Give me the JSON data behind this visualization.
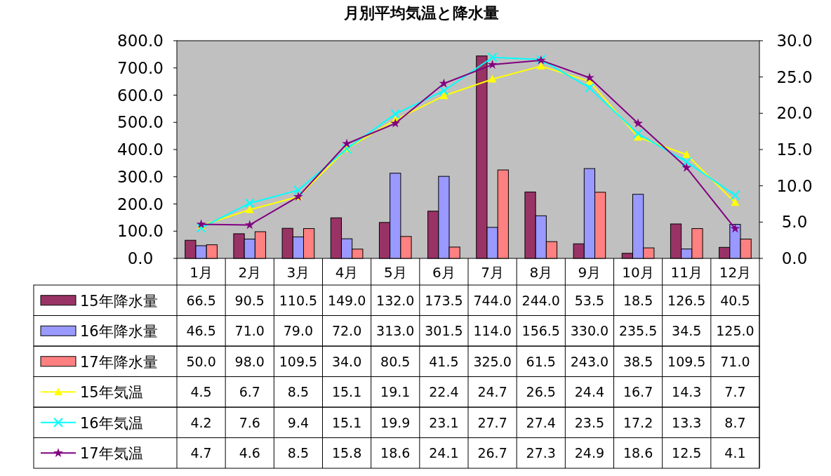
{
  "chart_data": {
    "type": "bar",
    "title": "月別平均気温と降水量",
    "categories": [
      "1月",
      "2月",
      "3月",
      "4月",
      "5月",
      "6月",
      "7月",
      "8月",
      "9月",
      "10月",
      "11月",
      "12月"
    ],
    "ylim": [
      0,
      800
    ],
    "yticks": [
      {
        "value": 0,
        "label": "0.0"
      },
      {
        "value": 100,
        "label": "100.0"
      },
      {
        "value": 200,
        "label": "200.0"
      },
      {
        "value": 300,
        "label": "300.0"
      },
      {
        "value": 400,
        "label": "400.0"
      },
      {
        "value": 500,
        "label": "500.0"
      },
      {
        "value": 600,
        "label": "600.0"
      },
      {
        "value": 700,
        "label": "700.0"
      },
      {
        "value": 800,
        "label": "800.0"
      }
    ],
    "y2lim": [
      0,
      30
    ],
    "y2ticks": [
      {
        "value": 0,
        "label": "0.0"
      },
      {
        "value": 5,
        "label": "5.0"
      },
      {
        "value": 10,
        "label": "10.0"
      },
      {
        "value": 15,
        "label": "15.0"
      },
      {
        "value": 20,
        "label": "20.0"
      },
      {
        "value": 25,
        "label": "25.0"
      },
      {
        "value": 30,
        "label": "30.0"
      }
    ],
    "grid": false,
    "legend": "bottom left",
    "series": [
      {
        "name": "15年降水量",
        "color": "#993366",
        "values": [
          66.5,
          90.5,
          110.5,
          149.0,
          132.0,
          173.5,
          744.0,
          244.0,
          53.5,
          18.5,
          126.5,
          40.5
        ],
        "value_labels": [
          "66.5",
          "90.5",
          "110.5",
          "149.0",
          "132.0",
          "173.5",
          "744.0",
          "244.0",
          "53.5",
          "18.5",
          "126.5",
          "40.5"
        ]
      },
      {
        "name": "16年降水量",
        "color": "#9999ff",
        "values": [
          46.5,
          71.0,
          79.0,
          72.0,
          313.0,
          301.5,
          114.0,
          156.5,
          330.0,
          235.5,
          34.5,
          125.0
        ],
        "value_labels": [
          "46.5",
          "71.0",
          "79.0",
          "72.0",
          "313.0",
          "301.5",
          "114.0",
          "156.5",
          "330.0",
          "235.5",
          "34.5",
          "125.0"
        ]
      },
      {
        "name": "17年降水量",
        "color": "#ff8080",
        "values": [
          50.0,
          98.0,
          109.5,
          34.0,
          80.5,
          41.5,
          325.0,
          61.5,
          243.0,
          38.5,
          109.5,
          71.0
        ],
        "value_labels": [
          "50.0",
          "98.0",
          "109.5",
          "34.0",
          "80.5",
          "41.5",
          "325.0",
          "61.5",
          "243.0",
          "38.5",
          "109.5",
          "71.0"
        ]
      },
      {
        "name": "15年気温",
        "type": "line",
        "axis": "y2",
        "marker": "triangle",
        "color": "#ffff00",
        "values": [
          4.5,
          6.7,
          8.5,
          15.1,
          19.1,
          22.4,
          24.7,
          26.5,
          24.4,
          16.7,
          14.3,
          7.7
        ],
        "value_labels": [
          "4.5",
          "6.7",
          "8.5",
          "15.1",
          "19.1",
          "22.4",
          "24.7",
          "26.5",
          "24.4",
          "16.7",
          "14.3",
          "7.7"
        ]
      },
      {
        "name": "16年気温",
        "type": "line",
        "axis": "y2",
        "marker": "cross",
        "color": "#00ffff",
        "values": [
          4.2,
          7.6,
          9.4,
          15.1,
          19.9,
          23.1,
          27.7,
          27.4,
          23.5,
          17.2,
          13.3,
          8.7
        ],
        "value_labels": [
          "4.2",
          "7.6",
          "9.4",
          "15.1",
          "19.9",
          "23.1",
          "27.7",
          "27.4",
          "23.5",
          "17.2",
          "13.3",
          "8.7"
        ]
      },
      {
        "name": "17年気温",
        "type": "line",
        "axis": "y2",
        "marker": "star",
        "color": "#800080",
        "values": [
          4.7,
          4.6,
          8.5,
          15.8,
          18.6,
          24.1,
          26.7,
          27.3,
          24.9,
          18.6,
          12.5,
          4.1
        ],
        "value_labels": [
          "4.7",
          "4.6",
          "8.5",
          "15.8",
          "18.6",
          "24.1",
          "26.7",
          "27.3",
          "24.9",
          "18.6",
          "12.5",
          "4.1"
        ]
      }
    ]
  }
}
